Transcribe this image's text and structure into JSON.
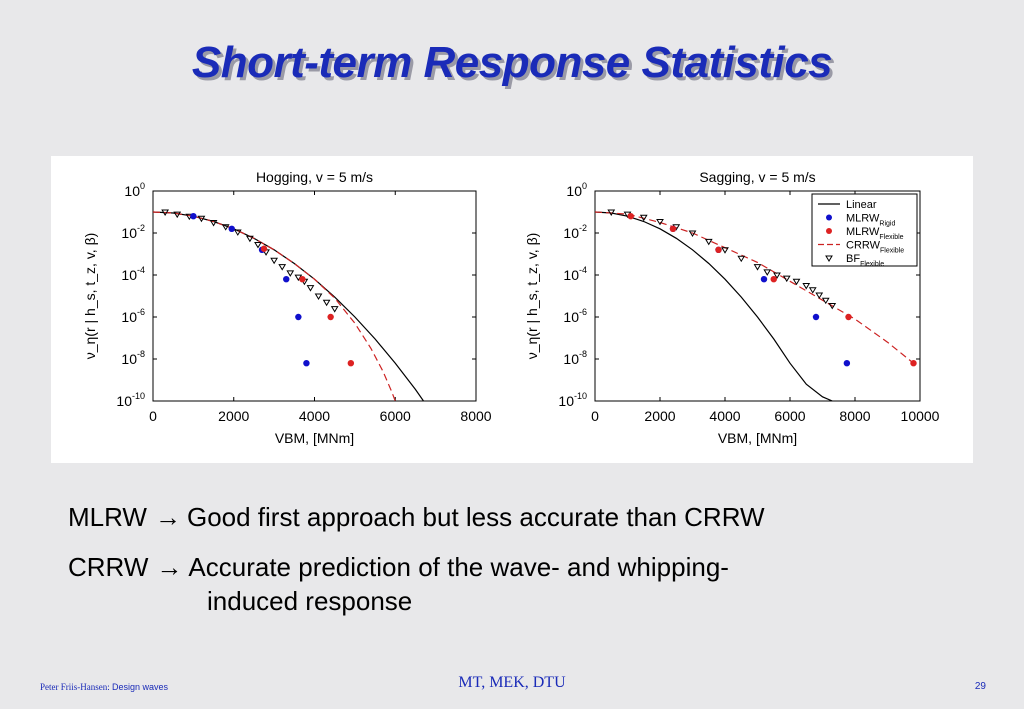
{
  "slide": {
    "title": "Short-term Response Statistics",
    "bullets": [
      {
        "term": "MLRW",
        "arrow": "→",
        "text": "Good first approach but less accurate than CRRW",
        "continuation": ""
      },
      {
        "term": "CRRW",
        "arrow": "→",
        "text": "Accurate prediction of the wave- and whipping-",
        "continuation": "induced response"
      }
    ],
    "footer": {
      "author": "Peter Friis-Hansen:",
      "topic": "Design waves",
      "center": "MT, MEK, DTU",
      "page": "29"
    }
  },
  "colors": {
    "title": "#1a2bb8",
    "linear": "#000000",
    "mlrw_rigid": "#1010cc",
    "mlrw_flexible": "#dd2222",
    "crrw_flexible": "#cc2222",
    "bf_flexible": "#000000"
  },
  "chart_data": [
    {
      "type": "scatter",
      "title": "Hogging, v = 5 m/s",
      "xlabel": "VBM, [MNm]",
      "ylabel": "ν_η(r | h_s, t_z, v, β)",
      "xlim": [
        0,
        8000
      ],
      "ylim_exponent": [
        -10,
        0
      ],
      "yscale": "log",
      "x_ticks": [
        "0",
        "2000",
        "4000",
        "6000",
        "8000"
      ],
      "y_ticks": [
        {
          "base": "10",
          "exp": "0"
        },
        {
          "base": "10",
          "exp": "-2"
        },
        {
          "base": "10",
          "exp": "-4"
        },
        {
          "base": "10",
          "exp": "-6"
        },
        {
          "base": "10",
          "exp": "-8"
        },
        {
          "base": "10",
          "exp": "-10"
        }
      ],
      "grid": false,
      "legend": null,
      "series": [
        {
          "key": "linear",
          "kind": "line",
          "x": [
            0,
            500,
            1000,
            1500,
            2000,
            2500,
            3000,
            3500,
            4000,
            4500,
            5000,
            5500,
            6000,
            6500,
            6700
          ],
          "y_log10": [
            -1.0,
            -1.05,
            -1.2,
            -1.45,
            -1.8,
            -2.25,
            -2.8,
            -3.45,
            -4.2,
            -5.05,
            -6.0,
            -7.05,
            -8.2,
            -9.45,
            -10.0
          ]
        },
        {
          "key": "crrw_flexible",
          "kind": "dashed",
          "x": [
            0,
            500,
            1000,
            1500,
            2000,
            2500,
            3000,
            3500,
            4000,
            4500,
            5000,
            5400,
            5700,
            5900,
            6000
          ],
          "y_log10": [
            -1.0,
            -1.05,
            -1.2,
            -1.45,
            -1.8,
            -2.25,
            -2.8,
            -3.45,
            -4.2,
            -5.1,
            -6.3,
            -7.5,
            -8.6,
            -9.5,
            -10.0
          ]
        },
        {
          "key": "bf_flexible",
          "kind": "triangles",
          "x": [
            300,
            600,
            900,
            1200,
            1500,
            1800,
            2100,
            2400,
            2600,
            2800,
            3000,
            3200,
            3400,
            3600,
            3750,
            3900,
            4100,
            4300,
            4500
          ],
          "y_log10": [
            -1.0,
            -1.1,
            -1.2,
            -1.3,
            -1.5,
            -1.7,
            -1.95,
            -2.25,
            -2.55,
            -2.9,
            -3.3,
            -3.6,
            -3.9,
            -4.1,
            -4.3,
            -4.6,
            -5.0,
            -5.3,
            -5.6
          ]
        },
        {
          "key": "mlrw_rigid",
          "kind": "dots",
          "x": [
            1000,
            1950,
            2700,
            3300,
            3600,
            3800
          ],
          "y_log10": [
            -1.2,
            -1.8,
            -2.8,
            -4.2,
            -6.0,
            -8.2
          ]
        },
        {
          "key": "mlrw_flexible",
          "kind": "dots",
          "x": [
            2750,
            3700,
            4400,
            4900
          ],
          "y_log10": [
            -2.75,
            -4.2,
            -6.0,
            -8.2
          ]
        }
      ]
    },
    {
      "type": "scatter",
      "title": "Sagging, v = 5 m/s",
      "xlabel": "VBM, [MNm]",
      "ylabel": "ν_η(r | h_s, t_z, v, β)",
      "xlim": [
        0,
        10000
      ],
      "ylim_exponent": [
        -10,
        0
      ],
      "yscale": "log",
      "x_ticks": [
        "0",
        "2000",
        "4000",
        "6000",
        "8000",
        "10000"
      ],
      "y_ticks": [
        {
          "base": "10",
          "exp": "0"
        },
        {
          "base": "10",
          "exp": "-2"
        },
        {
          "base": "10",
          "exp": "-4"
        },
        {
          "base": "10",
          "exp": "-6"
        },
        {
          "base": "10",
          "exp": "-8"
        },
        {
          "base": "10",
          "exp": "-10"
        }
      ],
      "grid": false,
      "legend": {
        "placement": "top-right",
        "entries": [
          {
            "key": "linear",
            "label": "Linear",
            "sub": ""
          },
          {
            "key": "mlrw_rigid",
            "label": "MLRW",
            "sub": "Rigid"
          },
          {
            "key": "mlrw_flexible",
            "label": "MLRW",
            "sub": "Flexible"
          },
          {
            "key": "crrw_flexible",
            "label": "CRRW",
            "sub": "Flexible"
          },
          {
            "key": "bf_flexible",
            "label": "BF",
            "sub": "Flexible"
          }
        ]
      },
      "series": [
        {
          "key": "linear",
          "kind": "line",
          "x": [
            0,
            500,
            1000,
            1500,
            2000,
            2500,
            3000,
            3500,
            4000,
            4500,
            5000,
            5500,
            6000,
            6500,
            7000,
            7300
          ],
          "y_log10": [
            -1.0,
            -1.05,
            -1.2,
            -1.45,
            -1.8,
            -2.25,
            -2.8,
            -3.45,
            -4.2,
            -5.05,
            -6.0,
            -7.05,
            -8.2,
            -9.2,
            -9.8,
            -10.0
          ]
        },
        {
          "key": "crrw_flexible",
          "kind": "dashed",
          "x": [
            0,
            1000,
            2000,
            3000,
            4000,
            5000,
            6000,
            7000,
            8000,
            9000,
            9800
          ],
          "y_log10": [
            -1.0,
            -1.1,
            -1.5,
            -2.0,
            -2.7,
            -3.4,
            -4.3,
            -5.2,
            -6.1,
            -7.2,
            -8.2
          ]
        },
        {
          "key": "bf_flexible",
          "kind": "triangles",
          "x": [
            500,
            1000,
            1500,
            2000,
            2500,
            3000,
            3500,
            4000,
            4500,
            5000,
            5300,
            5600,
            5900,
            6200,
            6500,
            6700,
            6900,
            7100,
            7300
          ],
          "y_log10": [
            -1.0,
            -1.1,
            -1.25,
            -1.45,
            -1.7,
            -2.0,
            -2.4,
            -2.8,
            -3.2,
            -3.6,
            -3.85,
            -4.0,
            -4.15,
            -4.3,
            -4.5,
            -4.7,
            -4.95,
            -5.2,
            -5.45
          ]
        },
        {
          "key": "mlrw_rigid",
          "kind": "dots",
          "x": [
            2400,
            3800,
            5200,
            6800,
            7750
          ],
          "y_log10": [
            -1.8,
            -2.8,
            -4.2,
            -6.0,
            -8.2
          ]
        },
        {
          "key": "mlrw_flexible",
          "kind": "dots",
          "x": [
            1100,
            2400,
            3800,
            5500,
            7800,
            9800
          ],
          "y_log10": [
            -1.2,
            -1.8,
            -2.8,
            -4.2,
            -6.0,
            -8.2
          ]
        }
      ]
    }
  ]
}
